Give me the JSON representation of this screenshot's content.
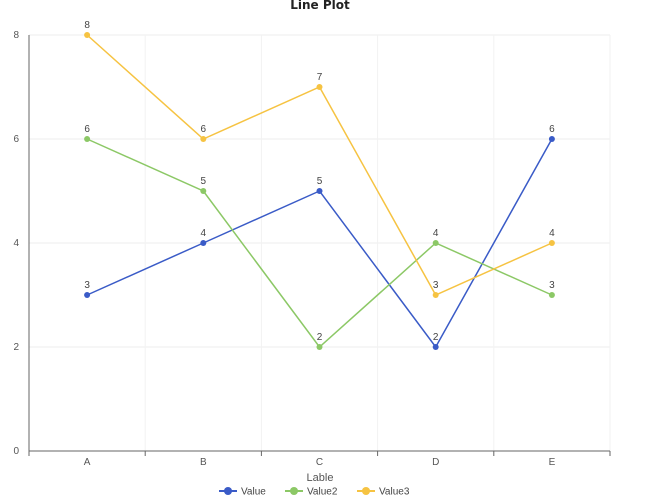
{
  "chart_data": {
    "type": "line",
    "title": "Line Plot",
    "xlabel": "Lable",
    "ylabel": "",
    "categories": [
      "A",
      "B",
      "C",
      "D",
      "E"
    ],
    "ylim": [
      0,
      8
    ],
    "yticks": [
      0,
      2,
      4,
      6,
      8
    ],
    "grid": true,
    "legend_position": "bottom-center",
    "series": [
      {
        "name": "Value",
        "color": "#3a5bc7",
        "values": [
          3,
          4,
          5,
          2,
          6
        ]
      },
      {
        "name": "Value2",
        "color": "#8cc866",
        "values": [
          6,
          5,
          2,
          4,
          3
        ]
      },
      {
        "name": "Value3",
        "color": "#f6c342",
        "values": [
          8,
          6,
          7,
          3,
          4
        ]
      }
    ]
  }
}
